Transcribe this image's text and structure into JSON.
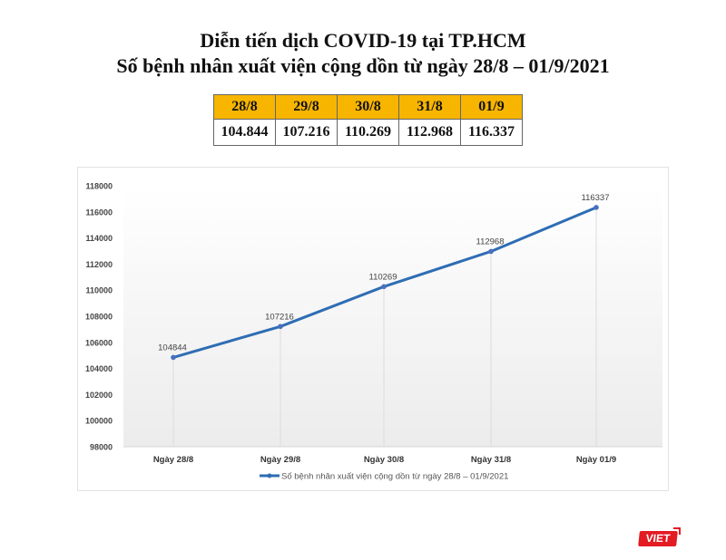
{
  "header": {
    "title_line1": "Diễn tiến dịch COVID-19 tại TP.HCM",
    "title_line2": "Số bệnh nhân xuất viện cộng dồn từ ngày 28/8 – 01/9/2021"
  },
  "summary_table": {
    "header_color": "#f7b500",
    "headers": [
      "28/8",
      "29/8",
      "30/8",
      "31/8",
      "01/9"
    ],
    "values": [
      "104.844",
      "107.216",
      "110.269",
      "112.968",
      "116.337"
    ]
  },
  "chart_data": {
    "type": "line",
    "title": "",
    "categories": [
      "Ngày 28/8",
      "Ngày 29/8",
      "Ngày 30/8",
      "Ngày 31/8",
      "Ngày 01/9"
    ],
    "series": [
      {
        "name": "Số bệnh nhân xuất viện cộng dồn từ ngày 28/8 – 01/9/2021",
        "color": "#2e6db4",
        "values": [
          104844,
          107216,
          110269,
          112968,
          116337
        ],
        "data_labels": [
          "104844",
          "107216",
          "110269",
          "112968",
          "116337"
        ]
      }
    ],
    "xlabel": "",
    "ylabel": "",
    "ylim": [
      98000,
      118000
    ],
    "yticks": [
      "118000",
      "116000",
      "114000",
      "112000",
      "110000",
      "108000",
      "106000",
      "104000",
      "102000",
      "100000",
      "98000"
    ],
    "grid": "vertical drop lines at each category",
    "legend_position": "bottom"
  },
  "logo": {
    "text": "VIET",
    "color": "#e31b23"
  }
}
